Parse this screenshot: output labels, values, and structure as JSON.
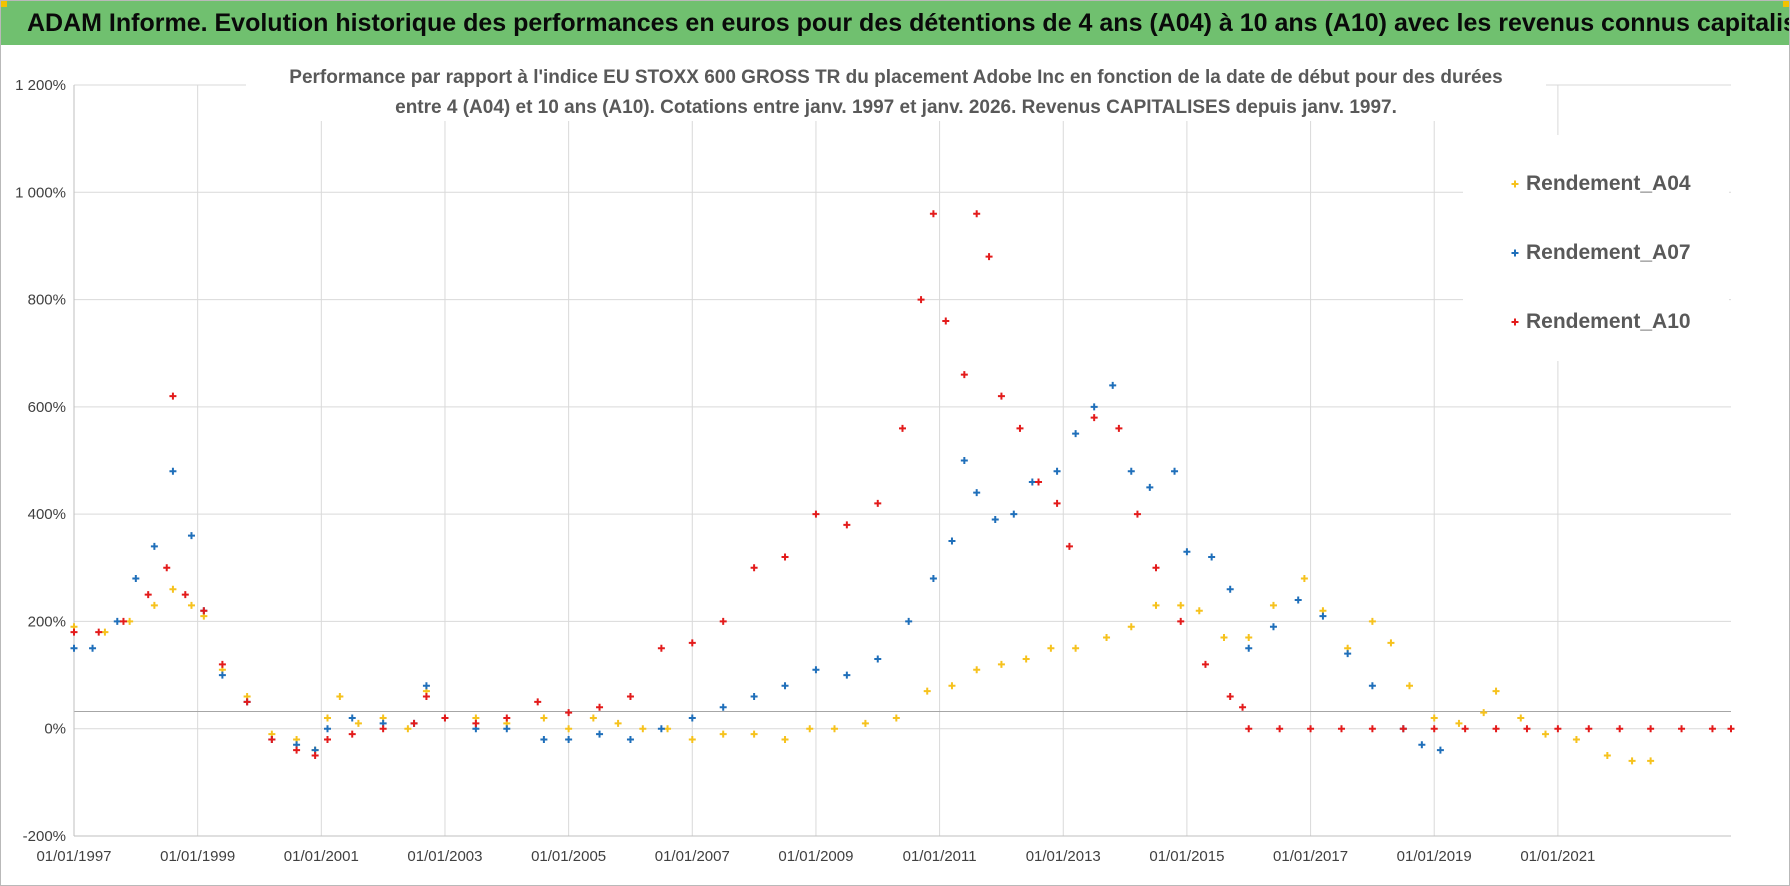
{
  "header": {
    "title": "ADAM Informe. Evolution historique des performances en euros pour des détentions de 4 ans (A04) à 10 ans (A10) avec les revenus connus capitalisés",
    "accent": "#70c06f"
  },
  "chart_data": {
    "type": "scatter",
    "title_line1": "Performance par rapport à l'indice EU STOXX 600 GROSS TR  du placement Adobe Inc en fonction de la date de début pour des durées",
    "title_line2": "entre 4 (A04) et 10 ans (A10).  Cotations entre janv. 1997 et janv. 2026. Revenus CAPITALISES  depuis janv. 1997.",
    "xlabel": "",
    "ylabel": "",
    "x_range": [
      1997.0,
      2023.8
    ],
    "ylim": [
      -200,
      1200
    ],
    "grid": true,
    "legend_position": "right",
    "y_ticks": [
      "-200%",
      "0%",
      "200%",
      "400%",
      "600%",
      "800%",
      "1 000%",
      "1 200%"
    ],
    "x_ticks": [
      "01/01/1997",
      "01/01/1999",
      "01/01/2001",
      "01/01/2003",
      "01/01/2005",
      "01/01/2007",
      "01/01/2009",
      "01/01/2011",
      "01/01/2013",
      "01/01/2015",
      "01/01/2017",
      "01/01/2019",
      "01/01/2021"
    ],
    "series": [
      {
        "name": "Rendement_A04",
        "color": "#f6c21d",
        "points": [
          [
            1997.0,
            190
          ],
          [
            1997.5,
            180
          ],
          [
            1997.9,
            200
          ],
          [
            1998.3,
            230
          ],
          [
            1998.6,
            260
          ],
          [
            1998.9,
            230
          ],
          [
            1999.1,
            210
          ],
          [
            1999.4,
            110
          ],
          [
            1999.8,
            60
          ],
          [
            2000.2,
            -10
          ],
          [
            2000.6,
            -20
          ],
          [
            2000.9,
            -40
          ],
          [
            2001.1,
            20
          ],
          [
            2001.3,
            60
          ],
          [
            2001.6,
            10
          ],
          [
            2002.0,
            20
          ],
          [
            2002.4,
            0
          ],
          [
            2002.7,
            70
          ],
          [
            2003.0,
            20
          ],
          [
            2003.5,
            20
          ],
          [
            2004.0,
            10
          ],
          [
            2004.6,
            20
          ],
          [
            2005.0,
            0
          ],
          [
            2005.4,
            20
          ],
          [
            2005.8,
            10
          ],
          [
            2006.2,
            0
          ],
          [
            2006.6,
            0
          ],
          [
            2007.0,
            -20
          ],
          [
            2007.5,
            -10
          ],
          [
            2008.0,
            -10
          ],
          [
            2008.5,
            -20
          ],
          [
            2008.9,
            0
          ],
          [
            2009.3,
            0
          ],
          [
            2009.8,
            10
          ],
          [
            2010.3,
            20
          ],
          [
            2010.8,
            70
          ],
          [
            2011.2,
            80
          ],
          [
            2011.6,
            110
          ],
          [
            2012.0,
            120
          ],
          [
            2012.4,
            130
          ],
          [
            2012.8,
            150
          ],
          [
            2013.2,
            150
          ],
          [
            2013.7,
            170
          ],
          [
            2014.1,
            190
          ],
          [
            2014.5,
            230
          ],
          [
            2014.9,
            230
          ],
          [
            2015.2,
            220
          ],
          [
            2015.6,
            170
          ],
          [
            2016.0,
            170
          ],
          [
            2016.4,
            230
          ],
          [
            2016.9,
            280
          ],
          [
            2017.2,
            220
          ],
          [
            2017.6,
            150
          ],
          [
            2018.0,
            200
          ],
          [
            2018.3,
            160
          ],
          [
            2018.6,
            80
          ],
          [
            2019.0,
            20
          ],
          [
            2019.4,
            10
          ],
          [
            2019.8,
            30
          ],
          [
            2020.0,
            70
          ],
          [
            2020.4,
            20
          ],
          [
            2020.8,
            -10
          ],
          [
            2021.3,
            -20
          ],
          [
            2021.8,
            -50
          ],
          [
            2022.2,
            -60
          ],
          [
            2022.5,
            -60
          ]
        ]
      },
      {
        "name": "Rendement_A07",
        "color": "#1f6fba",
        "points": [
          [
            1997.0,
            150
          ],
          [
            1997.3,
            150
          ],
          [
            1997.7,
            200
          ],
          [
            1998.0,
            280
          ],
          [
            1998.3,
            340
          ],
          [
            1998.6,
            480
          ],
          [
            1998.9,
            360
          ],
          [
            1999.1,
            220
          ],
          [
            1999.4,
            100
          ],
          [
            1999.8,
            50
          ],
          [
            2000.2,
            -20
          ],
          [
            2000.6,
            -30
          ],
          [
            2000.9,
            -40
          ],
          [
            2001.1,
            0
          ],
          [
            2001.5,
            20
          ],
          [
            2002.0,
            10
          ],
          [
            2002.5,
            10
          ],
          [
            2002.7,
            80
          ],
          [
            2003.0,
            20
          ],
          [
            2003.5,
            0
          ],
          [
            2004.0,
            0
          ],
          [
            2004.6,
            -20
          ],
          [
            2005.0,
            -20
          ],
          [
            2005.5,
            -10
          ],
          [
            2006.0,
            -20
          ],
          [
            2006.5,
            0
          ],
          [
            2007.0,
            20
          ],
          [
            2007.5,
            40
          ],
          [
            2008.0,
            60
          ],
          [
            2008.5,
            80
          ],
          [
            2009.0,
            110
          ],
          [
            2009.5,
            100
          ],
          [
            2010.0,
            130
          ],
          [
            2010.5,
            200
          ],
          [
            2010.9,
            280
          ],
          [
            2011.2,
            350
          ],
          [
            2011.4,
            500
          ],
          [
            2011.6,
            440
          ],
          [
            2011.9,
            390
          ],
          [
            2012.2,
            400
          ],
          [
            2012.5,
            460
          ],
          [
            2012.9,
            480
          ],
          [
            2013.2,
            550
          ],
          [
            2013.5,
            600
          ],
          [
            2013.8,
            640
          ],
          [
            2014.1,
            480
          ],
          [
            2014.4,
            450
          ],
          [
            2014.8,
            480
          ],
          [
            2015.0,
            330
          ],
          [
            2015.4,
            320
          ],
          [
            2015.7,
            260
          ],
          [
            2016.0,
            150
          ],
          [
            2016.4,
            190
          ],
          [
            2016.8,
            240
          ],
          [
            2017.2,
            210
          ],
          [
            2017.6,
            140
          ],
          [
            2018.0,
            80
          ],
          [
            2018.5,
            0
          ],
          [
            2018.8,
            -30
          ],
          [
            2019.1,
            -40
          ]
        ]
      },
      {
        "name": "Rendement_A10",
        "color": "#e31b1b",
        "points": [
          [
            1997.0,
            180
          ],
          [
            1997.4,
            180
          ],
          [
            1997.8,
            200
          ],
          [
            1998.2,
            250
          ],
          [
            1998.5,
            300
          ],
          [
            1998.6,
            620
          ],
          [
            1998.8,
            250
          ],
          [
            1999.1,
            220
          ],
          [
            1999.4,
            120
          ],
          [
            1999.8,
            50
          ],
          [
            2000.2,
            -20
          ],
          [
            2000.6,
            -40
          ],
          [
            2000.9,
            -50
          ],
          [
            2001.1,
            -20
          ],
          [
            2001.5,
            -10
          ],
          [
            2002.0,
            0
          ],
          [
            2002.5,
            10
          ],
          [
            2002.7,
            60
          ],
          [
            2003.0,
            20
          ],
          [
            2003.5,
            10
          ],
          [
            2004.0,
            20
          ],
          [
            2004.5,
            50
          ],
          [
            2005.0,
            30
          ],
          [
            2005.5,
            40
          ],
          [
            2006.0,
            60
          ],
          [
            2006.5,
            150
          ],
          [
            2007.0,
            160
          ],
          [
            2007.5,
            200
          ],
          [
            2008.0,
            300
          ],
          [
            2008.5,
            320
          ],
          [
            2009.0,
            400
          ],
          [
            2009.5,
            380
          ],
          [
            2010.0,
            420
          ],
          [
            2010.4,
            560
          ],
          [
            2010.7,
            800
          ],
          [
            2010.9,
            960
          ],
          [
            2011.1,
            760
          ],
          [
            2011.4,
            660
          ],
          [
            2011.6,
            960
          ],
          [
            2011.8,
            880
          ],
          [
            2012.0,
            620
          ],
          [
            2012.3,
            560
          ],
          [
            2012.6,
            460
          ],
          [
            2012.9,
            420
          ],
          [
            2013.1,
            340
          ],
          [
            2013.5,
            580
          ],
          [
            2013.9,
            560
          ],
          [
            2014.2,
            400
          ],
          [
            2014.5,
            300
          ],
          [
            2014.9,
            200
          ],
          [
            2015.3,
            120
          ],
          [
            2015.7,
            60
          ],
          [
            2015.9,
            40
          ],
          [
            2016.0,
            0
          ],
          [
            2016.5,
            0
          ],
          [
            2017.0,
            0
          ],
          [
            2017.5,
            0
          ],
          [
            2018.0,
            0
          ],
          [
            2018.5,
            0
          ],
          [
            2019.0,
            0
          ],
          [
            2019.5,
            0
          ],
          [
            2020.0,
            0
          ],
          [
            2020.5,
            0
          ],
          [
            2021.0,
            0
          ],
          [
            2021.5,
            0
          ],
          [
            2022.0,
            0
          ],
          [
            2022.5,
            0
          ],
          [
            2023.0,
            0
          ],
          [
            2023.5,
            0
          ],
          [
            2023.8,
            0
          ]
        ]
      }
    ]
  }
}
